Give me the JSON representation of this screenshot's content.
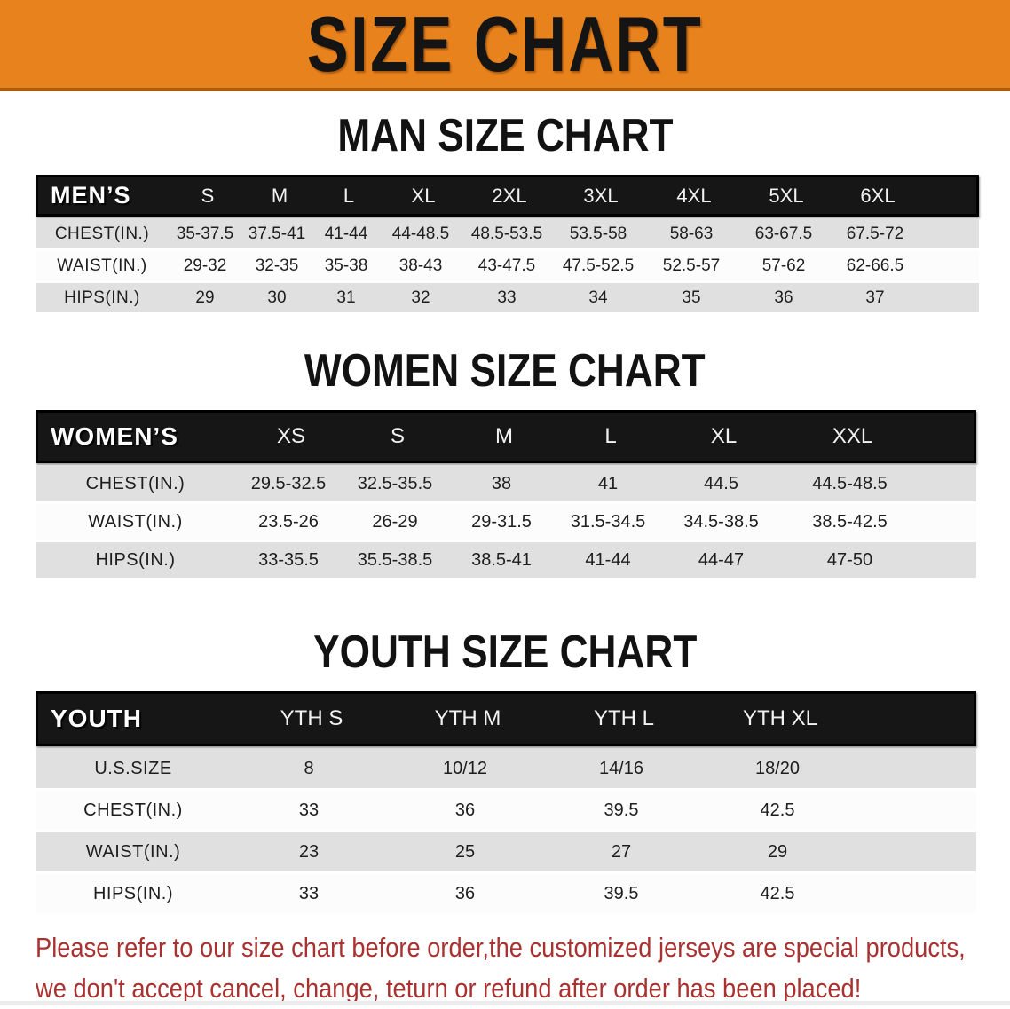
{
  "banner": {
    "title": "SIZE CHART",
    "bg_color": "#E8821C",
    "text_color": "#141414"
  },
  "sections": [
    {
      "id": "men",
      "title": "MAN SIZE CHART",
      "header": {
        "label": "MEN’S",
        "columns": [
          "S",
          "M",
          "L",
          "XL",
          "2XL",
          "3XL",
          "4XL",
          "5XL",
          "6XL"
        ]
      },
      "rows": [
        {
          "label": "CHEST(IN.)",
          "values": [
            "35-37.5",
            "37.5-41",
            "41-44",
            "44-48.5",
            "48.5-53.5",
            "53.5-58",
            "58-63",
            "63-67.5",
            "67.5-72"
          ]
        },
        {
          "label": "WAIST(IN.)",
          "values": [
            "29-32",
            "32-35",
            "35-38",
            "38-43",
            "43-47.5",
            "47.5-52.5",
            "52.5-57",
            "57-62",
            "62-66.5"
          ]
        },
        {
          "label": "HIPS(IN.)",
          "values": [
            "29",
            "30",
            "31",
            "32",
            "33",
            "34",
            "35",
            "36",
            "37"
          ]
        }
      ]
    },
    {
      "id": "women",
      "title": "WOMEN SIZE CHART",
      "header": {
        "label": "WOMEN’S",
        "columns": [
          "XS",
          "S",
          "M",
          "L",
          "XL",
          "XXL"
        ]
      },
      "rows": [
        {
          "label": "CHEST(IN.)",
          "values": [
            "29.5-32.5",
            "32.5-35.5",
            "38",
            "41",
            "44.5",
            "44.5-48.5"
          ]
        },
        {
          "label": "WAIST(IN.)",
          "values": [
            "23.5-26",
            "26-29",
            "29-31.5",
            "31.5-34.5",
            "34.5-38.5",
            "38.5-42.5"
          ]
        },
        {
          "label": "HIPS(IN.)",
          "values": [
            "33-35.5",
            "35.5-38.5",
            "38.5-41",
            "41-44",
            "44-47",
            "47-50"
          ]
        }
      ]
    },
    {
      "id": "youth",
      "title": "YOUTH SIZE CHART",
      "header": {
        "label": "YOUTH",
        "columns": [
          "YTH S",
          "YTH M",
          "YTH L",
          "YTH XL"
        ]
      },
      "rows": [
        {
          "label": "U.S.SIZE",
          "values": [
            "8",
            "10/12",
            "14/16",
            "18/20"
          ]
        },
        {
          "label": "CHEST(IN.)",
          "values": [
            "33",
            "36",
            "39.5",
            "42.5"
          ]
        },
        {
          "label": "WAIST(IN.)",
          "values": [
            "23",
            "25",
            "27",
            "29"
          ]
        },
        {
          "label": "HIPS(IN.)",
          "values": [
            "33",
            "36",
            "39.5",
            "42.5"
          ]
        }
      ]
    }
  ],
  "footer": {
    "line1": "Please refer to our size chart before order,the customized jerseys are special products,",
    "line2": "we don't accept cancel, change, teturn or refund after order has been placed!",
    "text_color": "#A93230"
  },
  "colors": {
    "banner_orange": "#E8821C",
    "header_bar_black": "#161616",
    "stripe_gray": "#E0E0E0",
    "footer_red": "#A93230"
  }
}
